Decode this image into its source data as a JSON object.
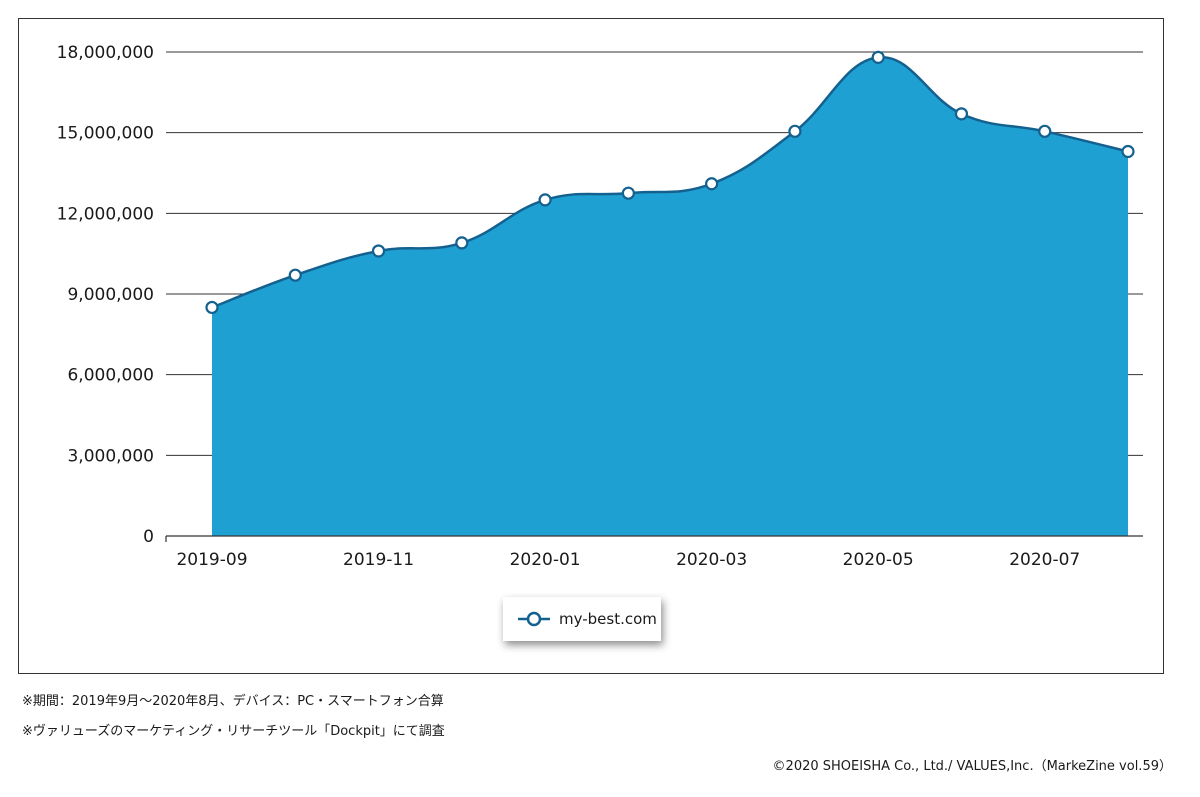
{
  "chart_data": {
    "type": "area",
    "x": [
      "2019-09",
      "2019-10",
      "2019-11",
      "2019-12",
      "2020-01",
      "2020-02",
      "2020-03",
      "2020-04",
      "2020-05",
      "2020-06",
      "2020-07",
      "2020-08"
    ],
    "x_tick_labels": [
      "2019-09",
      "2019-11",
      "2020-01",
      "2020-03",
      "2020-05",
      "2020-07"
    ],
    "y_tick_labels": [
      "0",
      "3,000,000",
      "6,000,000",
      "9,000,000",
      "12,000,000",
      "15,000,000",
      "18,000,000"
    ],
    "ylim": [
      0,
      18000000
    ],
    "series": [
      {
        "name": "my-best.com",
        "values": [
          8500000,
          9700000,
          10600000,
          10900000,
          12500000,
          12750000,
          13100000,
          15050000,
          17800000,
          15700000,
          15050000,
          14300000
        ]
      }
    ],
    "grid": "horizontal",
    "legend_position": "bottom-center",
    "colors": {
      "fill": "#1ea1d2",
      "line": "#14618f",
      "marker_fill": "#ffffff"
    }
  },
  "notes": [
    "※期間：2019年9月～2020年8月、デバイス：PC・スマートフォン合算",
    "※ヴァリューズのマーケティング・リサーチツール「Dockpit」にて調査"
  ],
  "copyright": "©2020 SHOEISHA Co., Ltd./ VALUES,Inc.（MarkeZine vol.59）"
}
